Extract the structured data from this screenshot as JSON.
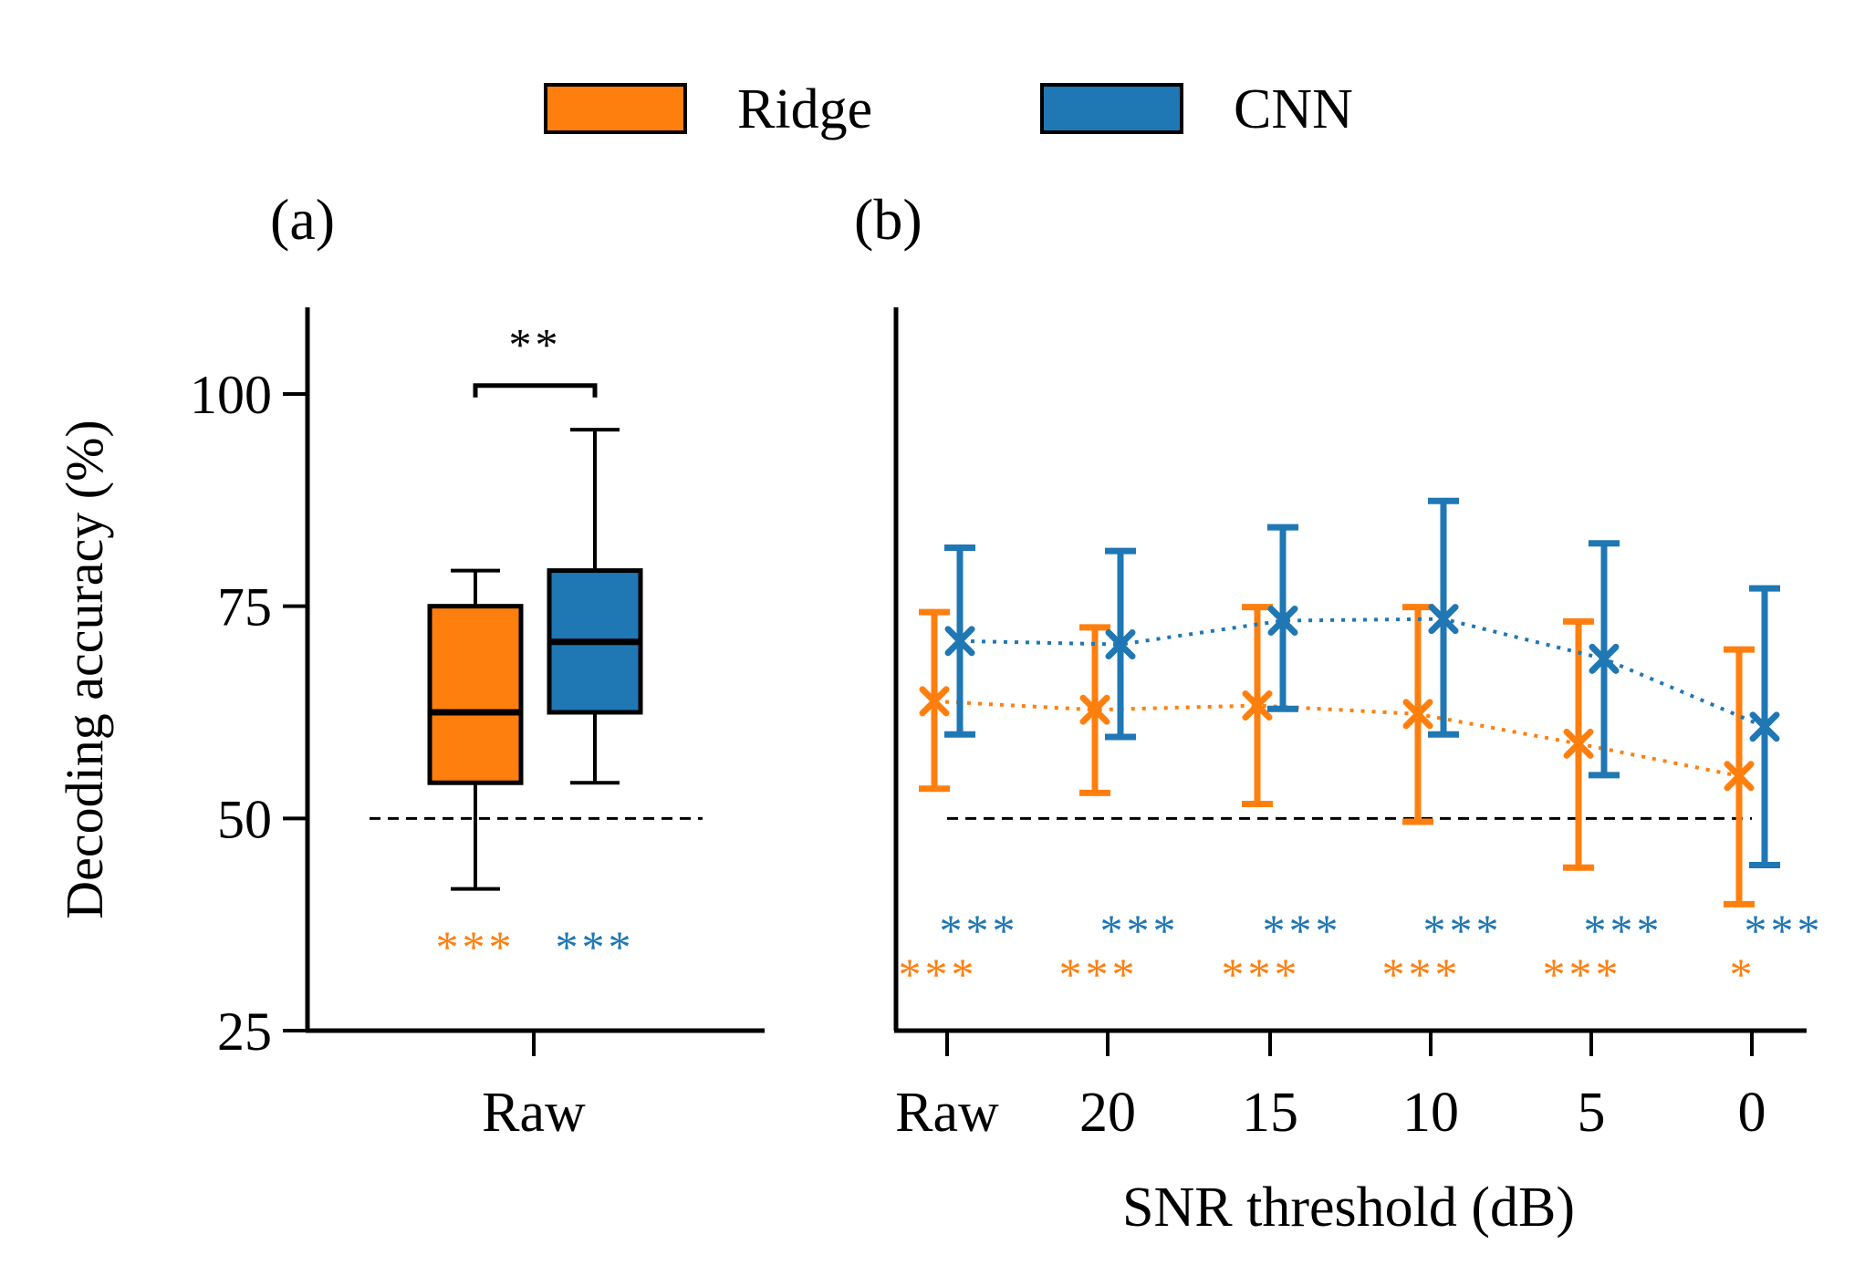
{
  "colors": {
    "ridge": "#ff7f0e",
    "cnn": "#1f77b4",
    "axis": "#000000",
    "chance": "#000000"
  },
  "legend": [
    {
      "label": "Ridge",
      "color": "#ff7f0e"
    },
    {
      "label": "CNN",
      "color": "#1f77b4"
    }
  ],
  "y_axis_label": "Decoding accuracy (%)",
  "chart_data": [
    {
      "panel": "(a)",
      "type": "box",
      "ylabel": "Decoding accuracy (%)",
      "ylim": [
        25,
        110
      ],
      "yticks": [
        25,
        50,
        75,
        100
      ],
      "categories": [
        "Raw"
      ],
      "chance_level": 50,
      "series": [
        {
          "name": "Ridge",
          "color": "#ff7f0e",
          "whisker_low": 41.7,
          "q1": 54.2,
          "median": 62.5,
          "q3": 75.0,
          "whisker_high": 79.2,
          "significance": "***"
        },
        {
          "name": "CNN",
          "color": "#1f77b4",
          "whisker_low": 54.2,
          "q1": 62.5,
          "median": 70.8,
          "q3": 79.2,
          "whisker_high": 95.8,
          "significance": "***"
        }
      ],
      "comparison": {
        "label": "**",
        "y": 101
      }
    },
    {
      "panel": "(b)",
      "type": "line",
      "xlabel": "SNR threshold (dB)",
      "ylim": [
        25,
        110
      ],
      "categories": [
        "Raw",
        "20",
        "15",
        "10",
        "5",
        "0"
      ],
      "chance_level": 50,
      "series": [
        {
          "name": "Ridge",
          "color": "#ff7f0e",
          "mean": [
            63.8,
            62.8,
            63.3,
            62.3,
            58.8,
            55.0
          ],
          "err_low": [
            53.5,
            53.0,
            51.7,
            49.6,
            44.2,
            39.9
          ],
          "err_high": [
            74.3,
            72.5,
            74.9,
            74.9,
            73.2,
            69.9
          ],
          "significance": [
            "***",
            "***",
            "***",
            "***",
            "***",
            "*"
          ]
        },
        {
          "name": "CNN",
          "color": "#1f77b4",
          "mean": [
            70.9,
            70.5,
            73.3,
            73.5,
            68.8,
            60.8
          ],
          "err_low": [
            59.9,
            59.6,
            62.9,
            59.9,
            55.1,
            44.5
          ],
          "err_high": [
            81.9,
            81.5,
            84.3,
            87.4,
            82.4,
            77.1
          ],
          "significance": [
            "***",
            "***",
            "***",
            "***",
            "***",
            "***"
          ]
        }
      ]
    }
  ]
}
